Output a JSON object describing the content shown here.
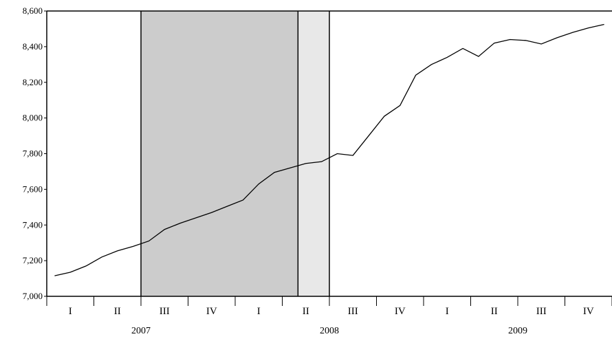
{
  "chart_data": {
    "type": "line",
    "title": "",
    "xlabel": "",
    "ylabel": "",
    "ylim": [
      7000,
      8600
    ],
    "yticks": [
      7000,
      7200,
      7400,
      7600,
      7800,
      8000,
      8200,
      8400,
      8600
    ],
    "ytick_labels": [
      "7,000",
      "7,200",
      "7,400",
      "7,600",
      "7,800",
      "8,000",
      "8,200",
      "8,400",
      "8,600"
    ],
    "x_period": "2007-01 to 2009-12 (monthly)",
    "quarter_labels": [
      "I",
      "II",
      "III",
      "IV",
      "I",
      "II",
      "III",
      "IV",
      "I",
      "II",
      "III",
      "IV"
    ],
    "year_labels": [
      "2007",
      "2008",
      "2009"
    ],
    "shaded_regions": [
      {
        "from": "2007-07",
        "to": "2008-05",
        "color": "#cccccc"
      },
      {
        "from": "2008-05",
        "to": "2008-07",
        "color": "#e8e8e8"
      }
    ],
    "vertical_lines": [
      "2007-07",
      "2008-05",
      "2008-07"
    ],
    "series": [
      {
        "color": "#000000",
        "x": [
          "2007-01",
          "2007-02",
          "2007-03",
          "2007-04",
          "2007-05",
          "2007-06",
          "2007-07",
          "2007-08",
          "2007-09",
          "2007-10",
          "2007-11",
          "2007-12",
          "2008-01",
          "2008-02",
          "2008-03",
          "2008-04",
          "2008-05",
          "2008-06",
          "2008-07",
          "2008-08",
          "2008-09",
          "2008-10",
          "2008-11",
          "2008-12",
          "2009-01",
          "2009-02",
          "2009-03",
          "2009-04",
          "2009-05",
          "2009-06",
          "2009-07",
          "2009-08",
          "2009-09",
          "2009-10",
          "2009-11",
          "2009-12"
        ],
        "values": [
          7115,
          7135,
          7170,
          7220,
          7255,
          7280,
          7310,
          7375,
          7410,
          7440,
          7470,
          7505,
          7540,
          7630,
          7695,
          7720,
          7745,
          7755,
          7800,
          7790,
          7900,
          8010,
          8070,
          8240,
          8300,
          8340,
          8390,
          8345,
          8420,
          8440,
          8435,
          8415,
          8450,
          8480,
          8505,
          8525
        ]
      }
    ]
  }
}
